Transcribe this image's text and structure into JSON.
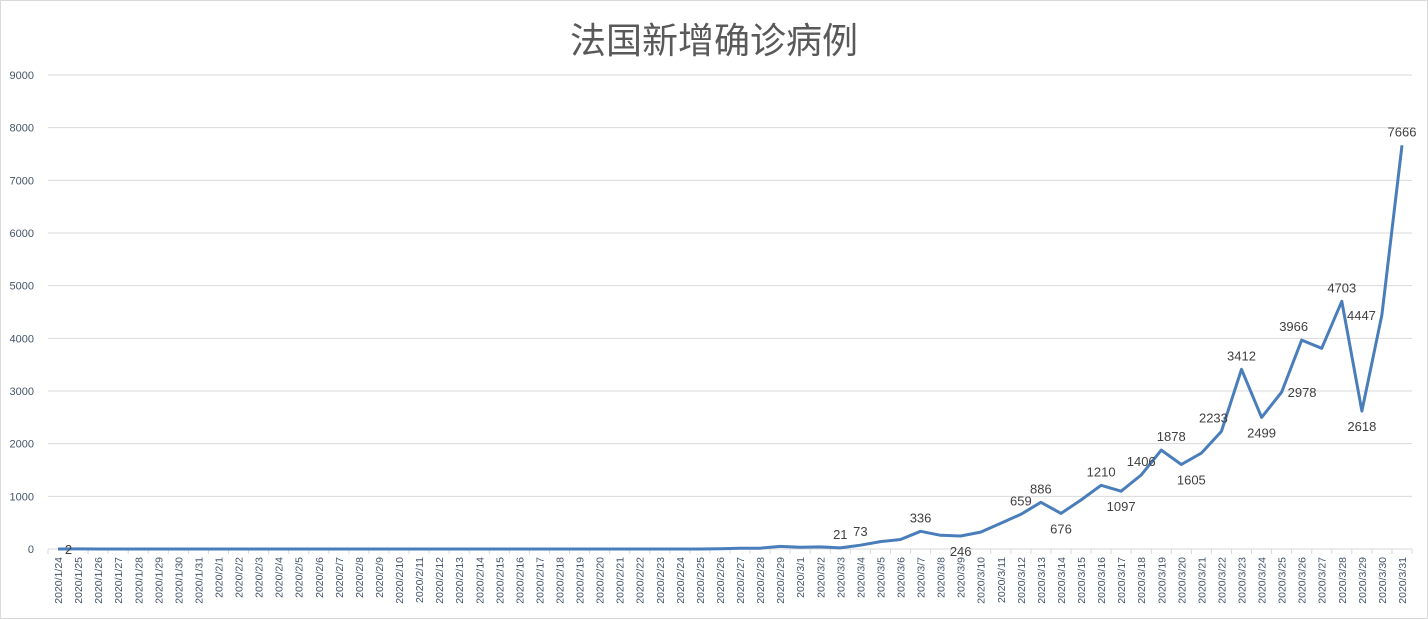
{
  "chart_data": {
    "type": "line",
    "title": "法国新增确诊病例",
    "xlabel": "",
    "ylabel": "",
    "ylim": [
      0,
      9000
    ],
    "yticks": [
      0,
      1000,
      2000,
      3000,
      4000,
      5000,
      6000,
      7000,
      8000,
      9000
    ],
    "grid": true,
    "legend": "none",
    "colors": {
      "line": "#4a7ebb",
      "grid": "#d9d9d9",
      "axis_text": "#44546a",
      "label_text": "#404040"
    },
    "x": [
      "2020/1/24",
      "2020/1/25",
      "2020/1/26",
      "2020/1/27",
      "2020/1/28",
      "2020/1/29",
      "2020/1/30",
      "2020/1/31",
      "2020/2/1",
      "2020/2/2",
      "2020/2/3",
      "2020/2/4",
      "2020/2/5",
      "2020/2/6",
      "2020/2/7",
      "2020/2/8",
      "2020/2/9",
      "2020/2/10",
      "2020/2/11",
      "2020/2/12",
      "2020/2/13",
      "2020/2/14",
      "2020/2/15",
      "2020/2/16",
      "2020/2/17",
      "2020/2/18",
      "2020/2/19",
      "2020/2/20",
      "2020/2/21",
      "2020/2/22",
      "2020/2/23",
      "2020/2/24",
      "2020/2/25",
      "2020/2/26",
      "2020/2/27",
      "2020/2/28",
      "2020/2/29",
      "2020/3/1",
      "2020/3/2",
      "2020/3/3",
      "2020/3/4",
      "2020/3/5",
      "2020/3/6",
      "2020/3/7",
      "2020/3/8",
      "2020/3/9",
      "2020/3/10",
      "2020/3/11",
      "2020/3/12",
      "2020/3/13",
      "2020/3/14",
      "2020/3/15",
      "2020/3/16",
      "2020/3/17",
      "2020/3/18",
      "2020/3/19",
      "2020/3/20",
      "2020/3/21",
      "2020/3/22",
      "2020/3/23",
      "2020/3/24",
      "2020/3/25",
      "2020/3/26",
      "2020/3/27",
      "2020/3/28",
      "2020/3/29",
      "2020/3/30",
      "2020/3/31"
    ],
    "values": [
      0,
      2,
      0,
      0,
      0,
      0,
      0,
      0,
      0,
      0,
      0,
      0,
      0,
      0,
      0,
      0,
      0,
      0,
      0,
      0,
      0,
      0,
      0,
      0,
      0,
      0,
      0,
      0,
      0,
      0,
      0,
      0,
      0,
      5,
      15,
      15,
      50,
      35,
      40,
      21,
      73,
      140,
      180,
      336,
      260,
      246,
      320,
      490,
      659,
      886,
      676,
      930,
      1210,
      1097,
      1406,
      1878,
      1605,
      1820,
      2233,
      3412,
      2499,
      2978,
      3966,
      3810,
      4703,
      2618,
      4447,
      7666
    ],
    "data_labels": [
      {
        "date": "2020/1/25",
        "text": "2",
        "pos": "left"
      },
      {
        "date": "2020/3/3",
        "text": "21",
        "pos": "above"
      },
      {
        "date": "2020/3/4",
        "text": "73",
        "pos": "above"
      },
      {
        "date": "2020/3/7",
        "text": "336",
        "pos": "above"
      },
      {
        "date": "2020/3/9",
        "text": "246",
        "pos": "below"
      },
      {
        "date": "2020/3/12",
        "text": "659",
        "pos": "above"
      },
      {
        "date": "2020/3/13",
        "text": "886",
        "pos": "above"
      },
      {
        "date": "2020/3/14",
        "text": "676",
        "pos": "below"
      },
      {
        "date": "2020/3/16",
        "text": "1210",
        "pos": "above"
      },
      {
        "date": "2020/3/17",
        "text": "1097",
        "pos": "below"
      },
      {
        "date": "2020/3/18",
        "text": "1406",
        "pos": "above"
      },
      {
        "date": "2020/3/19",
        "text": "1878",
        "pos": "above-right"
      },
      {
        "date": "2020/3/20",
        "text": "1605",
        "pos": "below-right"
      },
      {
        "date": "2020/3/22",
        "text": "2233",
        "pos": "above-left"
      },
      {
        "date": "2020/3/23",
        "text": "3412",
        "pos": "above"
      },
      {
        "date": "2020/3/24",
        "text": "2499",
        "pos": "below"
      },
      {
        "date": "2020/3/25",
        "text": "2978",
        "pos": "right"
      },
      {
        "date": "2020/3/26",
        "text": "3966",
        "pos": "above-left"
      },
      {
        "date": "2020/3/28",
        "text": "4703",
        "pos": "above"
      },
      {
        "date": "2020/3/29",
        "text": "2618",
        "pos": "below"
      },
      {
        "date": "2020/3/30",
        "text": "4447",
        "pos": "left"
      },
      {
        "date": "2020/3/31",
        "text": "7666",
        "pos": "above"
      }
    ]
  }
}
